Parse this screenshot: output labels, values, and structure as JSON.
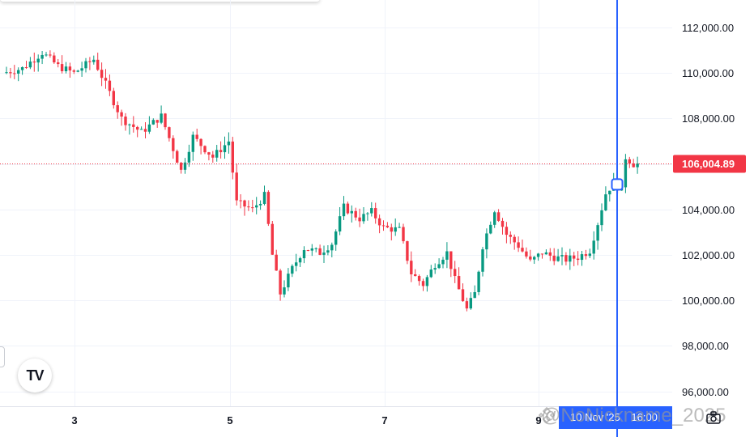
{
  "chart_data": {
    "type": "candlestick",
    "y_axis": {
      "labels": [
        "112,000.00",
        "110,000.00",
        "108,000.00",
        "106,000.00",
        "104,000.00",
        "102,000.00",
        "100,000.00",
        "98,000.00",
        "96,000.00"
      ],
      "range": [
        95000,
        113200
      ],
      "position": "right"
    },
    "x_axis": {
      "labels": [
        "3",
        "5",
        "7",
        "9"
      ],
      "unit": "day of month"
    },
    "grid": true,
    "last_price": {
      "value": 106004.89,
      "label": "106,004.89",
      "color": "#f23645"
    },
    "colors": {
      "up": "#089981",
      "down": "#f23645",
      "crosshair": "#2962ff",
      "grid": "#f0f3fa"
    },
    "path_keypoints": [
      [
        0,
        110000
      ],
      [
        5,
        110200
      ],
      [
        10,
        110900
      ],
      [
        14,
        110300
      ],
      [
        18,
        110000
      ],
      [
        23,
        110600
      ],
      [
        26,
        109500
      ],
      [
        30,
        108000
      ],
      [
        35,
        107400
      ],
      [
        40,
        108100
      ],
      [
        45,
        105700
      ],
      [
        48,
        107200
      ],
      [
        53,
        106300
      ],
      [
        57,
        107000
      ],
      [
        59,
        104300
      ],
      [
        63,
        104000
      ],
      [
        66,
        104600
      ],
      [
        68,
        102000
      ],
      [
        70,
        100300
      ],
      [
        73,
        101400
      ],
      [
        76,
        102300
      ],
      [
        80,
        102100
      ],
      [
        83,
        102500
      ],
      [
        86,
        104100
      ],
      [
        90,
        103600
      ],
      [
        93,
        103900
      ],
      [
        96,
        103200
      ],
      [
        100,
        103100
      ],
      [
        103,
        101200
      ],
      [
        106,
        100700
      ],
      [
        109,
        101600
      ],
      [
        112,
        102100
      ],
      [
        114,
        100900
      ],
      [
        117,
        99600
      ],
      [
        119,
        100300
      ],
      [
        121,
        102400
      ],
      [
        124,
        104000
      ],
      [
        127,
        102900
      ],
      [
        130,
        102400
      ],
      [
        133,
        101700
      ],
      [
        136,
        102100
      ],
      [
        139,
        101900
      ],
      [
        142,
        101800
      ],
      [
        145,
        101900
      ],
      [
        148,
        102200
      ],
      [
        150,
        103400
      ],
      [
        152,
        104700
      ],
      [
        154,
        105200
      ],
      [
        156,
        104800
      ],
      [
        157,
        106300
      ],
      [
        159,
        106000
      ]
    ],
    "candle_count": 160,
    "crosshair_price": 105100
  },
  "cursor_date_label": "10 Nov '25",
  "cursor_time_label": "16:00",
  "watermark": "@NoNickname_2025",
  "logo": "TV",
  "icons": {
    "logo": "tradingview-logo-icon",
    "watermark": "binance-icon",
    "snapshot": "camera-icon"
  }
}
